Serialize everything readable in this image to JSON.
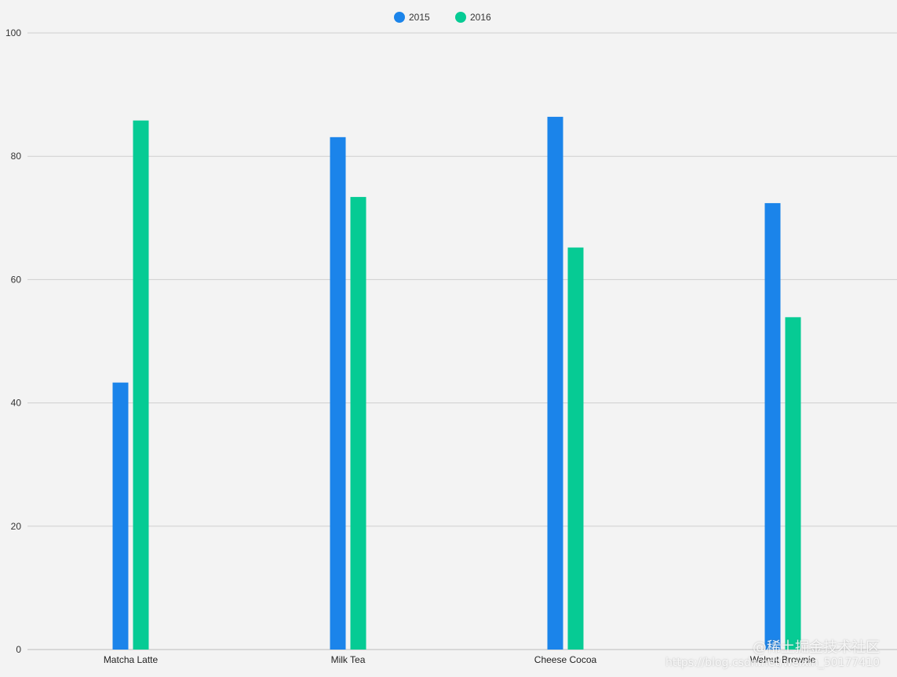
{
  "chart_data": {
    "type": "bar",
    "categories": [
      "Matcha Latte",
      "Milk Tea",
      "Cheese Cocoa",
      "Walnut Brownie"
    ],
    "series": [
      {
        "name": "2015",
        "color": "#1b84ea",
        "values": [
          43.3,
          83.1,
          86.4,
          72.4
        ]
      },
      {
        "name": "2016",
        "color": "#06cb94",
        "values": [
          85.8,
          73.4,
          65.2,
          53.9
        ]
      }
    ],
    "ylim": [
      0,
      100
    ],
    "yticks": [
      0,
      20,
      40,
      60,
      80,
      100
    ],
    "grid": true,
    "legend_position": "top-center",
    "title": "",
    "xlabel": "",
    "ylabel": ""
  },
  "watermark": {
    "main": "@稀土掘金技术社区",
    "sub": "https://blog.csdn.net/weixin_50177410"
  }
}
